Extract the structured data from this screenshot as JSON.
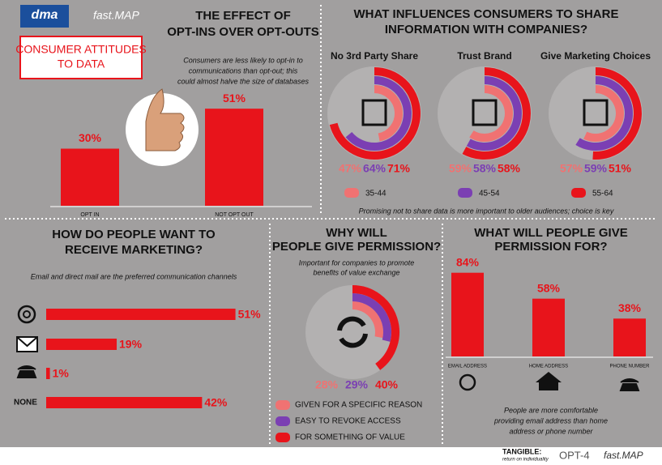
{
  "header": {
    "logos": [
      "dma",
      "fast.MAP"
    ],
    "title": [
      "CONSUMER ATTITUDES",
      "TO DATA"
    ]
  },
  "optins": {
    "title": [
      "THE EFFECT OF",
      "OPT-INS OVER OPT-OUTS"
    ],
    "note": [
      "Consumers are less likely to opt-in to",
      "communications than opt-out; this",
      "could almost halve the size of databases"
    ],
    "categories": [
      "OPT IN",
      "NOT OPT OUT"
    ],
    "values": [
      30,
      51
    ],
    "value_labels": [
      "30%",
      "51%"
    ],
    "color": "#e8141b"
  },
  "influences": {
    "title": [
      "WHAT INFLUENCES CONSUMERS TO SHARE",
      "INFORMATION WITH COMPANIES?"
    ],
    "series": [
      {
        "name": "35-44",
        "color": "#f07272"
      },
      {
        "name": "45-54",
        "color": "#7b3fb3"
      },
      {
        "name": "55-64",
        "color": "#e8141b"
      }
    ],
    "groups": [
      {
        "name": "No 3rd Party Share",
        "values": [
          47,
          64,
          71
        ],
        "value_labels": [
          "47%",
          "64%",
          "71%"
        ]
      },
      {
        "name": "Trust Brand",
        "values": [
          59,
          58,
          58
        ],
        "value_labels": [
          "59%",
          "58%",
          "58%"
        ]
      },
      {
        "name": "Give Marketing Choices",
        "values": [
          57,
          59,
          51
        ],
        "value_labels": [
          "57%",
          "59%",
          "51%"
        ]
      }
    ],
    "note": "Promising not to share data is more important to older audiences; choice is key"
  },
  "channels": {
    "title": [
      "HOW DO PEOPLE WANT TO",
      "RECEIVE MARKETING?"
    ],
    "note": "Email and direct mail are the preferred communication channels",
    "categories": [
      null,
      null,
      null,
      "NONE"
    ],
    "values": [
      51,
      19,
      1,
      42
    ],
    "value_labels": [
      "51%",
      "19%",
      "1%",
      "42%"
    ],
    "color": "#e8141b"
  },
  "permission": {
    "title": [
      "WHY WILL",
      "PEOPLE GIVE PERMISSION?"
    ],
    "note": [
      "Important for companies to promote",
      "benefits of value exchange"
    ],
    "series": [
      {
        "name": "GIVEN FOR A SPECIFIC REASON",
        "color": "#f07272"
      },
      {
        "name": "EASY TO REVOKE ACCESS",
        "color": "#7b3fb3"
      },
      {
        "name": "FOR SOMETHING OF VALUE",
        "color": "#e8141b"
      }
    ],
    "values": [
      28,
      29,
      40
    ],
    "value_labels": [
      "28%",
      "29%",
      "40%"
    ]
  },
  "permission_for": {
    "title": [
      "WHAT WILL PEOPLE GIVE",
      "PERMISSION FOR?"
    ],
    "categories": [
      "EMAIL ADDRESS",
      "HOME ADDRESS",
      "PHONE NUMBER"
    ],
    "values": [
      84,
      58,
      38
    ],
    "value_labels": [
      "84%",
      "58%",
      "38%"
    ],
    "color": "#e8141b",
    "note": [
      "People are more comfortable",
      "providing email address than home",
      "address or phone number"
    ]
  },
  "footer": {
    "texts": [
      "TANGIBLE:",
      "return on individuality",
      "OPT-4",
      "fast.MAP"
    ]
  }
}
